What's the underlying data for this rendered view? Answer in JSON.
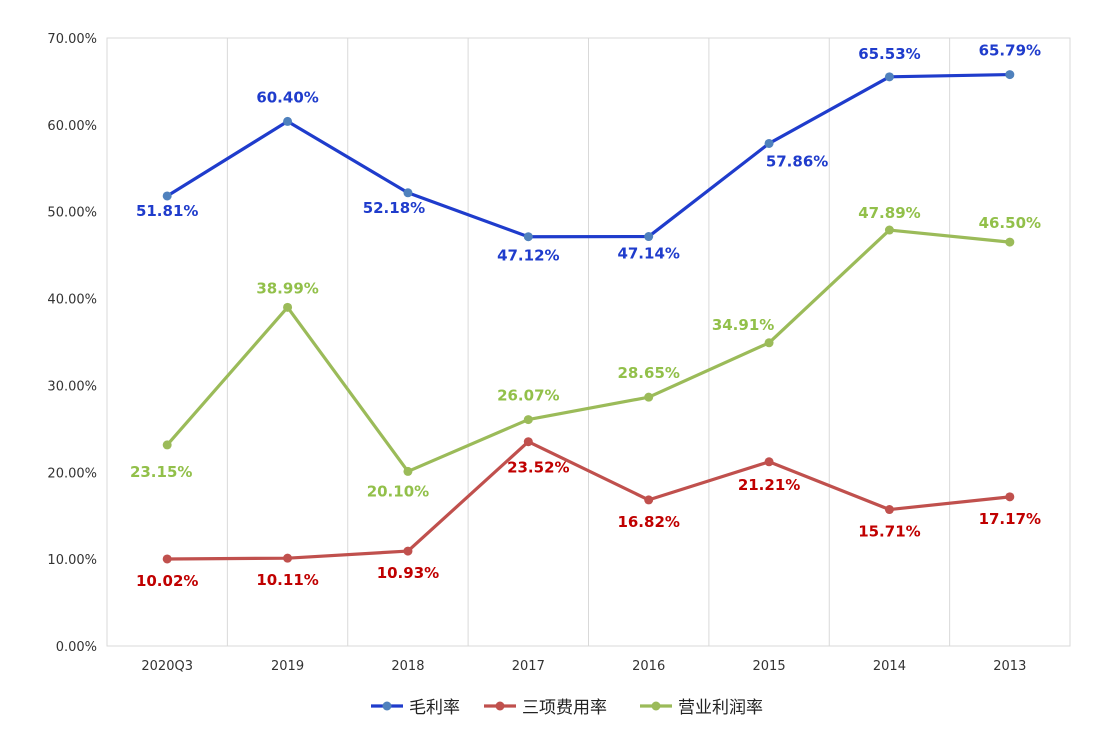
{
  "chart_data": {
    "type": "line",
    "title": "",
    "xlabel": "",
    "ylabel": "",
    "categories": [
      "2020Q3",
      "2019",
      "2018",
      "2017",
      "2016",
      "2015",
      "2014",
      "2013"
    ],
    "ylim": [
      0,
      70
    ],
    "yticks": [
      "0.00%",
      "10.00%",
      "20.00%",
      "30.00%",
      "40.00%",
      "50.00%",
      "60.00%",
      "70.00%"
    ],
    "grid": "vertical",
    "legend_position": "bottom",
    "series": [
      {
        "name": "毛利率",
        "values": [
          51.81,
          60.4,
          52.18,
          47.12,
          47.14,
          57.86,
          65.53,
          65.79
        ],
        "labels": [
          "51.81%",
          "60.40%",
          "52.18%",
          "47.12%",
          "47.14%",
          "57.86%",
          "65.53%",
          "65.79%"
        ],
        "line_color": "#1f3ccc",
        "marker_color": "#4f81bd",
        "label_color": "#1f3ccc"
      },
      {
        "name": "三项费用率",
        "values": [
          10.02,
          10.11,
          10.93,
          23.52,
          16.82,
          21.21,
          15.71,
          17.17
        ],
        "labels": [
          "10.02%",
          "10.11%",
          "10.93%",
          "23.52%",
          "16.82%",
          "21.21%",
          "15.71%",
          "17.17%"
        ],
        "line_color": "#c0504d",
        "marker_color": "#c0504d",
        "label_color": "#c00000"
      },
      {
        "name": "营业利润率",
        "values": [
          23.15,
          38.99,
          20.1,
          26.07,
          28.65,
          34.91,
          47.89,
          46.5
        ],
        "labels": [
          "23.15%",
          "38.99%",
          "20.10%",
          "26.07%",
          "28.65%",
          "34.91%",
          "47.89%",
          "46.50%"
        ],
        "line_color": "#9bbb59",
        "marker_color": "#9bbb59",
        "label_color": "#92c04a"
      }
    ]
  }
}
